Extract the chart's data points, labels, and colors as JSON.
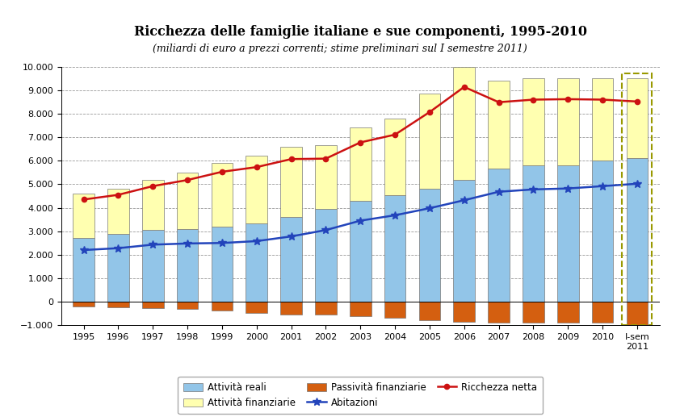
{
  "title": "Ricchezza delle famiglie italiane e sue componenti, 1995-2010",
  "subtitle": "(miliardi di euro a prezzi correnti; stime preliminari sul I semestre 2011)",
  "years": [
    "1995",
    "1996",
    "1997",
    "1998",
    "1999",
    "2000",
    "2001",
    "2002",
    "2003",
    "2004",
    "2005",
    "2006",
    "2007",
    "2008",
    "2009",
    "2010",
    "I-sem\n2011"
  ],
  "attivita_reali": [
    2700,
    2900,
    3050,
    3100,
    3200,
    3350,
    3600,
    3950,
    4300,
    4550,
    4800,
    5200,
    5650,
    5800,
    5800,
    6000,
    6100
  ],
  "attivita_finanziarie": [
    1900,
    1900,
    2150,
    2400,
    2700,
    2850,
    3000,
    2700,
    3100,
    3250,
    4050,
    4800,
    3750,
    3700,
    3700,
    3500,
    3400
  ],
  "passivita_finanziarie": [
    -200,
    -230,
    -280,
    -310,
    -380,
    -470,
    -530,
    -560,
    -620,
    -690,
    -780,
    -860,
    -900,
    -900,
    -880,
    -900,
    -980
  ],
  "abitazioni": [
    2200,
    2280,
    2430,
    2480,
    2500,
    2580,
    2780,
    3050,
    3450,
    3680,
    3980,
    4320,
    4680,
    4780,
    4820,
    4920,
    5020
  ],
  "ricchezza_netta": [
    4350,
    4550,
    4920,
    5180,
    5530,
    5730,
    6070,
    6090,
    6780,
    7110,
    8070,
    9140,
    8490,
    8600,
    8620,
    8600,
    8520
  ],
  "color_attivita_reali": "#92C5E8",
  "color_attivita_finanziarie": "#FFFFB0",
  "color_passivita_finanziarie": "#D45F10",
  "color_abitazioni": "#2244BB",
  "color_ricchezza_netta": "#CC1111",
  "ylim_min": -1000,
  "ylim_max": 10000,
  "yticks": [
    -1000,
    0,
    1000,
    2000,
    3000,
    4000,
    5000,
    6000,
    7000,
    8000,
    9000,
    10000
  ],
  "legend_labels": [
    "Attività reali",
    "Attività finanziarie",
    "Passività finanziarie",
    "Abitazioni",
    "Ricchezza netta"
  ],
  "bar_edge_color": "#777777",
  "bar_width": 0.62
}
